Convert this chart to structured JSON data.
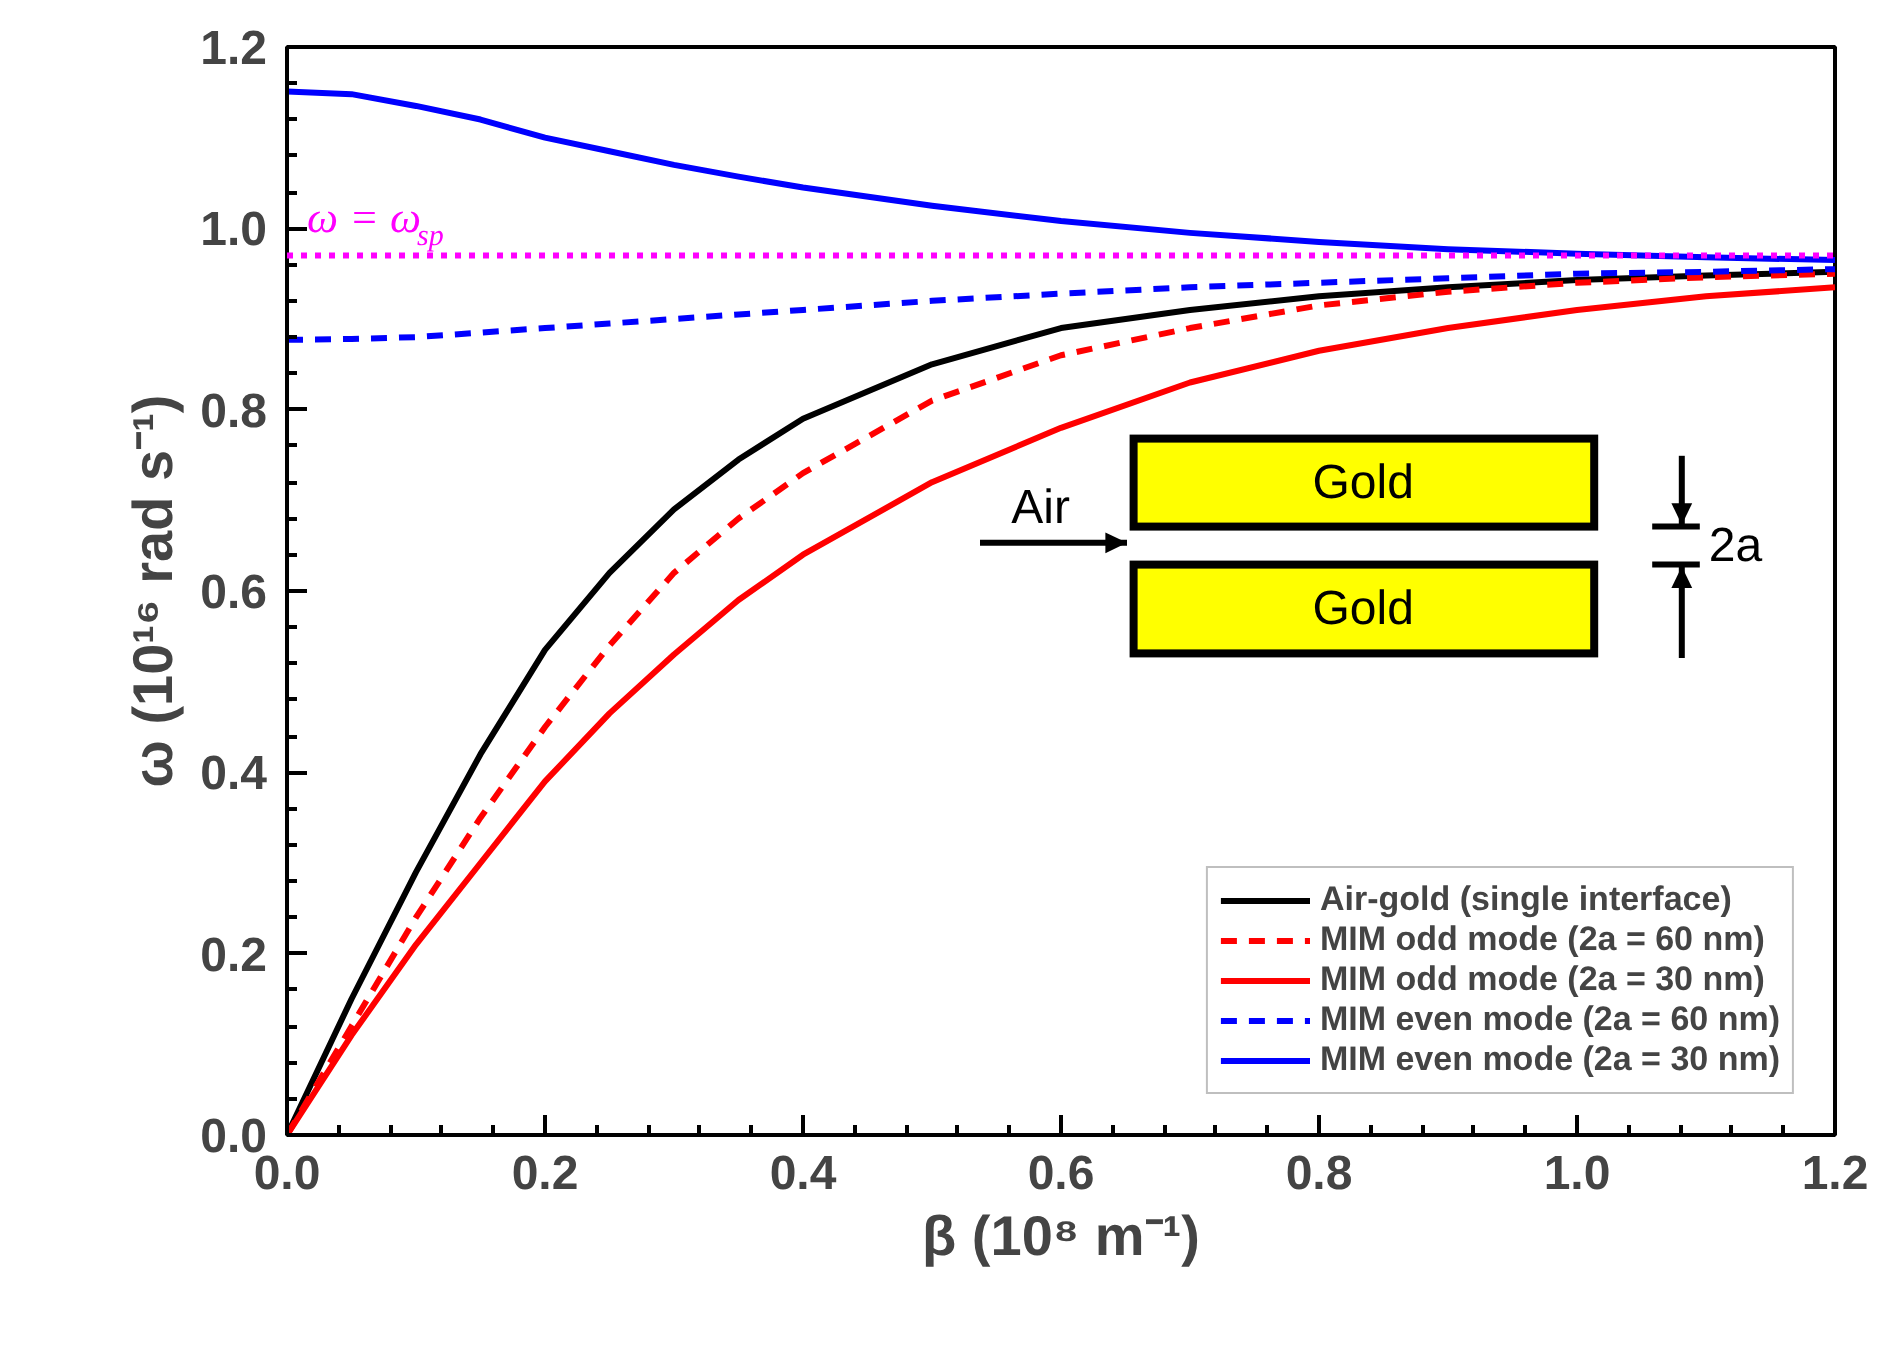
{
  "chart_data": {
    "type": "line",
    "xlabel": "β (10⁸ m⁻¹)",
    "ylabel": "ω (10¹⁶ rad s⁻¹)",
    "x": [
      0,
      0.05,
      0.1,
      0.15,
      0.2,
      0.25,
      0.3,
      0.35,
      0.4,
      0.5,
      0.6,
      0.7,
      0.8,
      0.9,
      1.0,
      1.1,
      1.2
    ],
    "series": [
      {
        "name": "Air-gold (single interface)",
        "color": "#000000",
        "line_style": "solid",
        "values": [
          0,
          0.15,
          0.29,
          0.42,
          0.535,
          0.62,
          0.69,
          0.745,
          0.79,
          0.85,
          0.89,
          0.91,
          0.925,
          0.935,
          0.943,
          0.948,
          0.952
        ]
      },
      {
        "name": "MIM odd mode (2a = 60 nm)",
        "color": "#ff0000",
        "line_style": "dashed",
        "values": [
          0,
          0.12,
          0.24,
          0.35,
          0.45,
          0.54,
          0.62,
          0.68,
          0.73,
          0.81,
          0.86,
          0.89,
          0.915,
          0.93,
          0.94,
          0.946,
          0.95
        ]
      },
      {
        "name": "MIM odd mode (2a = 30 nm)",
        "color": "#ff0000",
        "line_style": "solid",
        "values": [
          0,
          0.11,
          0.21,
          0.3,
          0.39,
          0.465,
          0.53,
          0.59,
          0.64,
          0.72,
          0.78,
          0.83,
          0.865,
          0.89,
          0.91,
          0.925,
          0.935
        ]
      },
      {
        "name": "MIM even mode (2a = 60 nm)",
        "color": "#0000ff",
        "line_style": "dashed",
        "values": [
          0.877,
          0.878,
          0.88,
          0.885,
          0.89,
          0.895,
          0.9,
          0.905,
          0.91,
          0.92,
          0.928,
          0.935,
          0.94,
          0.945,
          0.95,
          0.952,
          0.955
        ]
      },
      {
        "name": "MIM even mode (2a = 30 nm)",
        "color": "#0000ff",
        "line_style": "solid",
        "values": [
          1.151,
          1.148,
          1.135,
          1.12,
          1.1,
          1.085,
          1.07,
          1.057,
          1.045,
          1.025,
          1.008,
          0.995,
          0.985,
          0.977,
          0.972,
          0.968,
          0.965
        ]
      }
    ],
    "ref_lines": [
      {
        "axis": "y",
        "value": 0.97,
        "label": "ω = ω$_{sp}$",
        "color": "#ff00ff",
        "line_style": "dotted"
      }
    ],
    "annotations": [
      "Air",
      "Gold",
      "Gold",
      "2a"
    ],
    "xlim": [
      0,
      1.2
    ],
    "ylim": [
      0,
      1.2
    ],
    "xticks": [
      {
        "value": 0,
        "label": "0.0"
      },
      {
        "value": 0.2,
        "label": "0.2"
      },
      {
        "value": 0.4,
        "label": "0.4"
      },
      {
        "value": 0.6,
        "label": "0.6"
      },
      {
        "value": 0.8,
        "label": "0.8"
      },
      {
        "value": 1.0,
        "label": "1.0"
      },
      {
        "value": 1.2,
        "label": "1.2"
      }
    ],
    "yticks": [
      {
        "value": 0,
        "label": "0.0"
      },
      {
        "value": 0.2,
        "label": "0.2"
      },
      {
        "value": 0.4,
        "label": "0.4"
      },
      {
        "value": 0.6,
        "label": "0.6"
      },
      {
        "value": 0.8,
        "label": "0.8"
      },
      {
        "value": 1.0,
        "label": "1.0"
      },
      {
        "value": 1.2,
        "label": "1.2"
      }
    ],
    "grid": false,
    "legend": "bottom right",
    "marker": "none"
  }
}
